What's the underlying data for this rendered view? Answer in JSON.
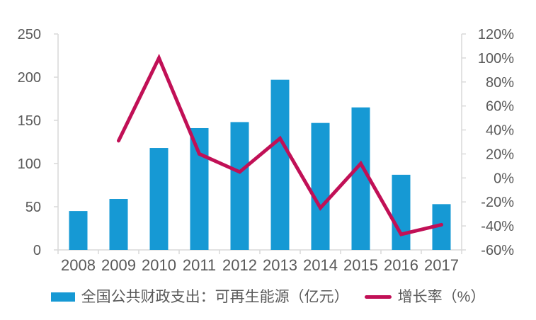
{
  "chart_data": {
    "type": "bar+line",
    "title": "",
    "categories": [
      "2008",
      "2009",
      "2010",
      "2011",
      "2012",
      "2013",
      "2014",
      "2015",
      "2016",
      "2017"
    ],
    "series": [
      {
        "name": "全国公共财政支出：可再生能源（亿元）",
        "type": "bar",
        "axis": "left",
        "values": [
          45,
          59,
          118,
          141,
          148,
          197,
          147,
          165,
          87,
          53
        ]
      },
      {
        "name": "增长率（%）",
        "type": "line",
        "axis": "right",
        "values": [
          null,
          31,
          100,
          20,
          5,
          33,
          -25,
          12,
          -47,
          -39
        ]
      }
    ],
    "left_axis": {
      "min": 0,
      "max": 250,
      "step": 50,
      "tick_labels": [
        "0",
        "50",
        "100",
        "150",
        "200",
        "250"
      ]
    },
    "right_axis": {
      "min": -60,
      "max": 120,
      "step": 20,
      "tick_labels": [
        "-60%",
        "-40%",
        "-20%",
        "0%",
        "20%",
        "40%",
        "60%",
        "80%",
        "100%",
        "120%"
      ]
    },
    "grid": false,
    "legend_position": "bottom"
  },
  "legend": {
    "bar_label": "全国公共财政支出：可再生能源（亿元）",
    "line_label": "增长率（%）"
  },
  "colors": {
    "bar": "#1699D4",
    "line": "#C11056",
    "axis": "#D9D9D9",
    "text": "#595959",
    "background": "#FFFFFF"
  }
}
